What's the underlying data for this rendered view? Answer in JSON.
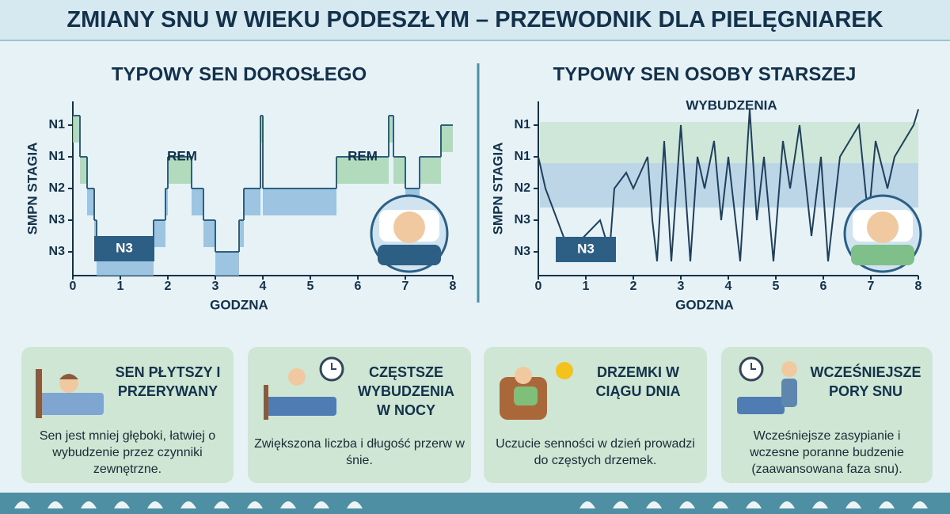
{
  "title": "ZMIANY SNU W WIEKU PODESZŁYM – PRZEWODNIK DLA PIELĘGNIAREK",
  "chart_data": [
    {
      "type": "step",
      "title": "TYPOWY SEN DOROSŁEGO",
      "y_label": "SMPN STAGIA",
      "x_label": "GODZNA",
      "x": [
        0,
        0.15,
        0.3,
        0.45,
        0.5,
        1.7,
        1.95,
        2.0,
        2.5,
        2.75,
        3.0,
        3.5,
        3.6,
        3.95,
        4.0,
        5.55,
        6.65,
        6.75,
        7.0,
        7.3,
        7.75
      ],
      "values": [
        0.7,
        2,
        3,
        4,
        5,
        4,
        3,
        2,
        3,
        4,
        5,
        4,
        3,
        0.7,
        3,
        2,
        0.7,
        2,
        3,
        2,
        1
      ],
      "color": "#2f5f7f",
      "xlim": [
        0,
        8
      ],
      "xticks": [
        0,
        1,
        2,
        3,
        4,
        5,
        6,
        7,
        8
      ],
      "ylim": [
        5.75,
        0.25
      ],
      "yticks": [
        {
          "value": 1,
          "label": "N1"
        },
        {
          "value": 2,
          "label": "N1"
        },
        {
          "value": 3,
          "label": "N2"
        },
        {
          "value": 4,
          "label": "N3"
        },
        {
          "value": 5,
          "label": "N3"
        }
      ],
      "annotations": [
        "REM",
        "REM",
        "N3"
      ]
    },
    {
      "type": "line",
      "title": "TYPOWY SEN OSOBY STARSZEJ",
      "y_label": "SMPN STAGIA",
      "x_label": "GODZNA",
      "x": [
        0,
        0.15,
        0.4,
        0.65,
        1.3,
        1.5,
        1.6,
        1.85,
        2.0,
        2.3,
        2.4,
        2.5,
        2.65,
        2.8,
        3.0,
        3.2,
        3.35,
        3.5,
        3.7,
        3.85,
        4.0,
        4.25,
        4.45,
        4.6,
        4.75,
        4.95,
        5.15,
        5.3,
        5.5,
        5.75,
        5.95,
        6.1,
        6.35,
        6.55,
        6.75,
        6.95,
        7.1,
        7.35,
        7.5,
        7.9,
        8.0
      ],
      "values": [
        2,
        3,
        4,
        5,
        4,
        5,
        3,
        2.5,
        3,
        2,
        4,
        5.3,
        1.5,
        5.3,
        1,
        5.3,
        2,
        3,
        1.5,
        4,
        2,
        5.3,
        0.5,
        4,
        2,
        5.3,
        1.5,
        3,
        1,
        4.5,
        2,
        5.3,
        2,
        1.5,
        1,
        4,
        1.5,
        3,
        2,
        1,
        0.5
      ],
      "color": "#1f3f5a",
      "xlim": [
        0,
        8
      ],
      "xticks": [
        0,
        1,
        2,
        3,
        4,
        5,
        6,
        7,
        8
      ],
      "ylim": [
        5.75,
        0.25
      ],
      "yticks": [
        {
          "value": 1,
          "label": "N1"
        },
        {
          "value": 2,
          "label": "N1"
        },
        {
          "value": 3,
          "label": "N2"
        },
        {
          "value": 4,
          "label": "N3"
        },
        {
          "value": 5,
          "label": "N3"
        }
      ],
      "annotations": [
        "WYBUDZENIA",
        "N3"
      ]
    }
  ],
  "cards": [
    {
      "title": "SEN PŁYTSZY I PRZERYWANY",
      "text": "Sen jest mniej głęboki, łatwiej o wybudzenie przez czynniki zewnętrzne."
    },
    {
      "title": "CZĘSTSZE WYBUDZENIA W NOCY",
      "text": "Zwiększona liczba i długość przerw w śnie."
    },
    {
      "title": "DRZEMKI W CIĄGU DNIA",
      "text": "Uczucie senności w dzień prowadzi do częstych drzemek."
    },
    {
      "title": "WCZEŚNIEJSZE PORY SNU",
      "text": "Wcześniejsze zasypianie i wczesne poranne budzenie (zaawansowana faza snu)."
    }
  ]
}
